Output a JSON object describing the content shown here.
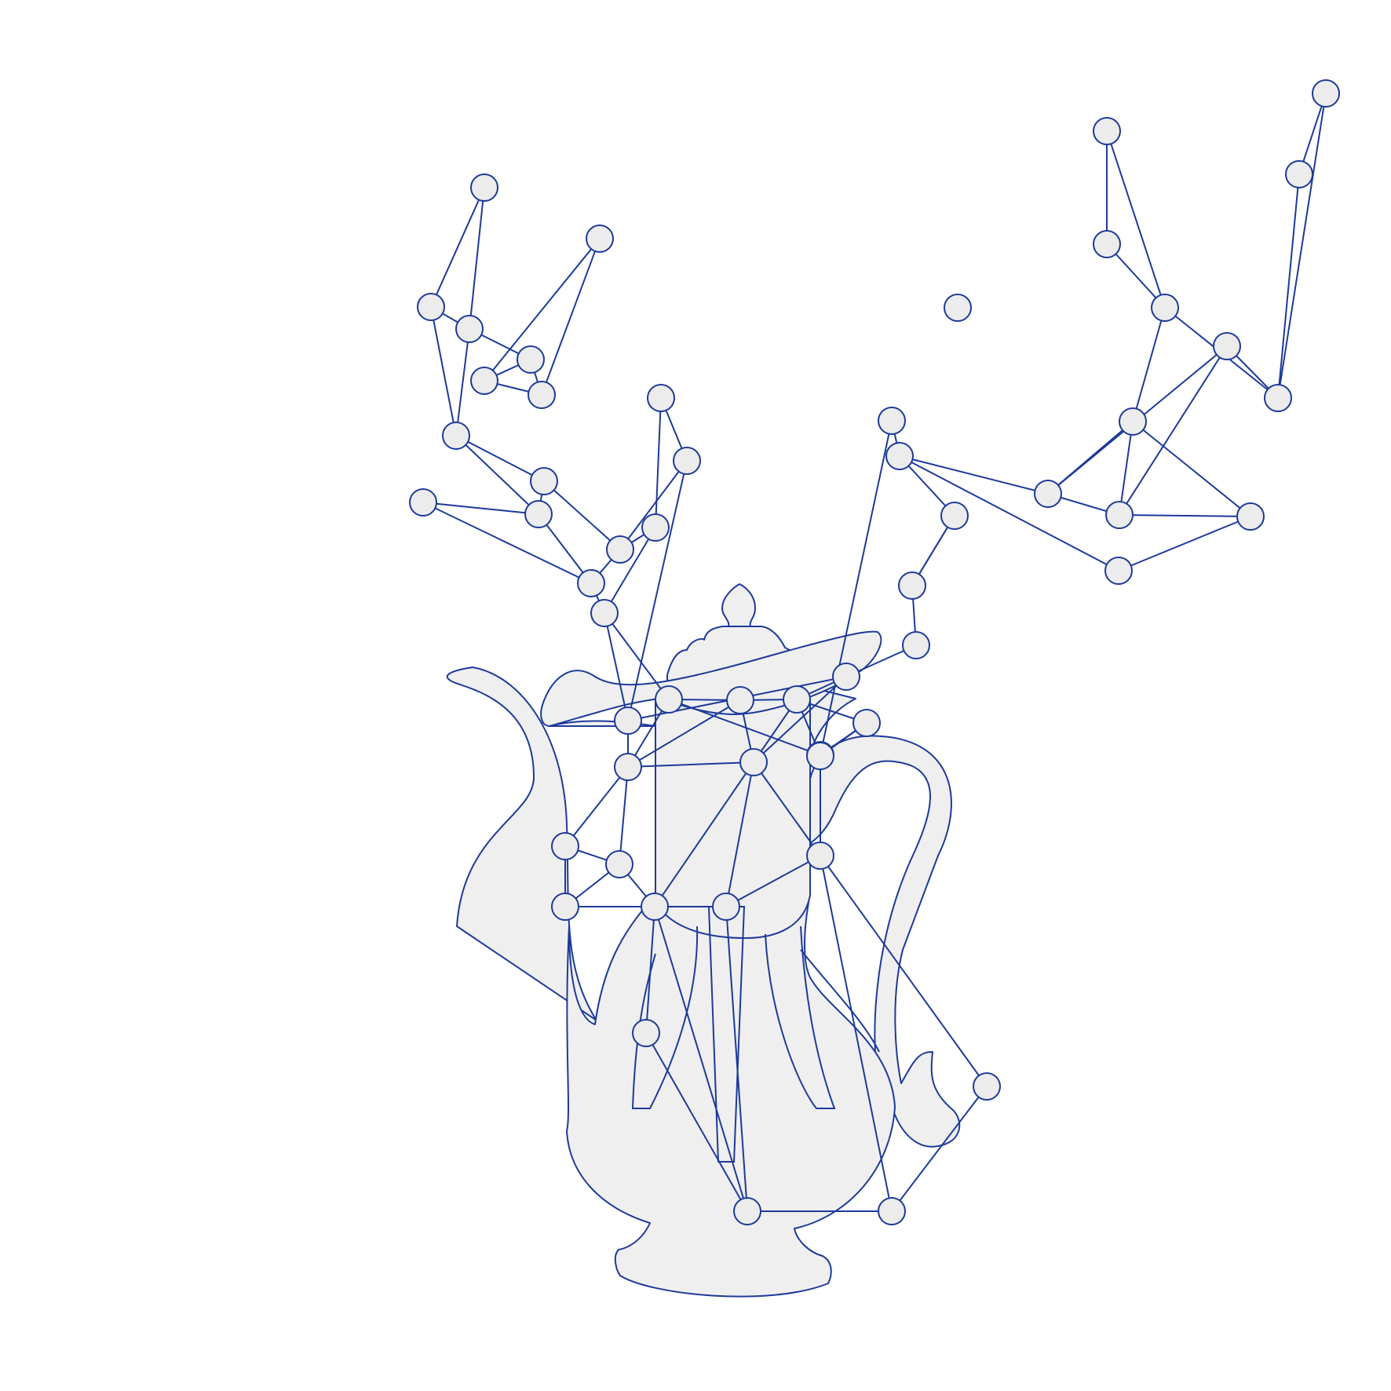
{
  "figure": {
    "description_name": "teapot-with-network-graph",
    "colors": {
      "stroke": "#1d3a9a",
      "fill": "#efefef",
      "node_fill": "#ececec",
      "background": "#ffffff"
    },
    "graph": {
      "node_count": 65
    }
  }
}
